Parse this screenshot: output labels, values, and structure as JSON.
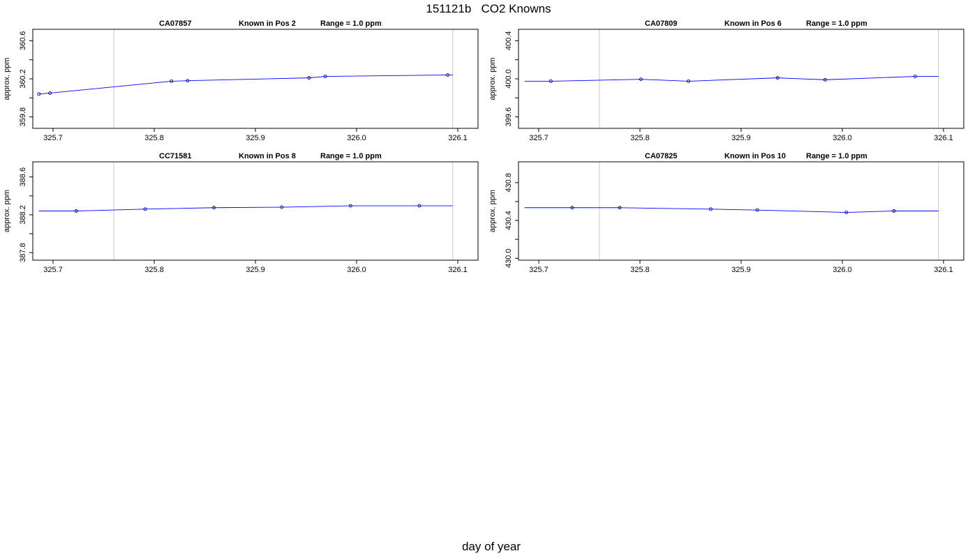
{
  "page": {
    "title": "151121b   CO2 Knowns",
    "xlabel": "day of year"
  },
  "chart_data": [
    {
      "type": "line",
      "title_parts": [
        "CA07857",
        "Known in Pos 2",
        "Range = 1.0 ppm"
      ],
      "ylabel": "approx. ppm",
      "xlim": [
        325.68,
        326.12
      ],
      "ylim": [
        359.68,
        360.72
      ],
      "xticks": [
        "325.7",
        "325.8",
        "325.9",
        "326.0",
        "326.1"
      ],
      "yticks": [
        "359.8",
        "360.2",
        "360.6"
      ],
      "vlines": [
        325.76,
        326.095
      ],
      "line_color": "#0000ff",
      "points": [
        [
          325.686,
          360.04
        ],
        [
          325.697,
          360.05
        ],
        [
          325.817,
          360.175
        ],
        [
          325.833,
          360.18
        ],
        [
          325.953,
          360.21
        ],
        [
          325.969,
          360.225
        ],
        [
          326.09,
          360.24
        ]
      ],
      "line_end": [
        326.095,
        360.24
      ]
    },
    {
      "type": "line",
      "title_parts": [
        "CA07809",
        "Known in Pos 6",
        "Range = 1.0 ppm"
      ],
      "ylabel": "approx. ppm",
      "xlim": [
        325.68,
        326.12
      ],
      "ylim": [
        399.48,
        400.52
      ],
      "xticks": [
        "325.7",
        "325.8",
        "325.9",
        "326.0",
        "326.1"
      ],
      "yticks": [
        "399.6",
        "400.0",
        "400.4"
      ],
      "vlines": [
        325.76,
        326.095
      ],
      "line_color": "#0000ff",
      "points": [
        [
          325.712,
          399.975
        ],
        [
          325.801,
          399.995
        ],
        [
          325.848,
          399.975
        ],
        [
          325.936,
          400.01
        ],
        [
          325.983,
          399.99
        ],
        [
          326.072,
          400.025
        ]
      ],
      "line_start": [
        325.686,
        399.975
      ],
      "line_end": [
        326.095,
        400.025
      ]
    },
    {
      "type": "line",
      "title_parts": [
        "CC71581",
        "Known in Pos 8",
        "Range = 1.0 ppm"
      ],
      "ylabel": "approx. ppm",
      "xlim": [
        325.68,
        326.12
      ],
      "ylim": [
        387.72,
        388.76
      ],
      "xticks": [
        "325.7",
        "325.8",
        "325.9",
        "326.0",
        "326.1"
      ],
      "yticks": [
        "387.8",
        "388.2",
        "388.6"
      ],
      "vlines": [
        325.76,
        326.095
      ],
      "line_color": "#0000ff",
      "points": [
        [
          325.723,
          388.24
        ],
        [
          325.791,
          388.26
        ],
        [
          325.859,
          388.275
        ],
        [
          325.926,
          388.28
        ],
        [
          325.994,
          388.295
        ],
        [
          326.062,
          388.295
        ]
      ],
      "line_start": [
        325.686,
        388.24
      ],
      "line_end": [
        326.095,
        388.295
      ]
    },
    {
      "type": "line",
      "title_parts": [
        "CA07825",
        "Known in Pos 10",
        "Range = 1.0 ppm"
      ],
      "ylabel": "approx. ppm",
      "xlim": [
        325.68,
        326.12
      ],
      "ylim": [
        429.98,
        431.02
      ],
      "xticks": [
        "325.7",
        "325.8",
        "325.9",
        "326.0",
        "326.1"
      ],
      "yticks": [
        "430.0",
        "430.4",
        "430.8"
      ],
      "vlines": [
        325.76,
        326.095
      ],
      "line_color": "#0000ff",
      "points": [
        [
          325.733,
          430.535
        ],
        [
          325.78,
          430.535
        ],
        [
          325.87,
          430.52
        ],
        [
          325.916,
          430.51
        ],
        [
          326.004,
          430.485
        ],
        [
          326.051,
          430.5
        ]
      ],
      "line_start": [
        325.686,
        430.535
      ],
      "line_end": [
        326.095,
        430.5
      ]
    }
  ]
}
